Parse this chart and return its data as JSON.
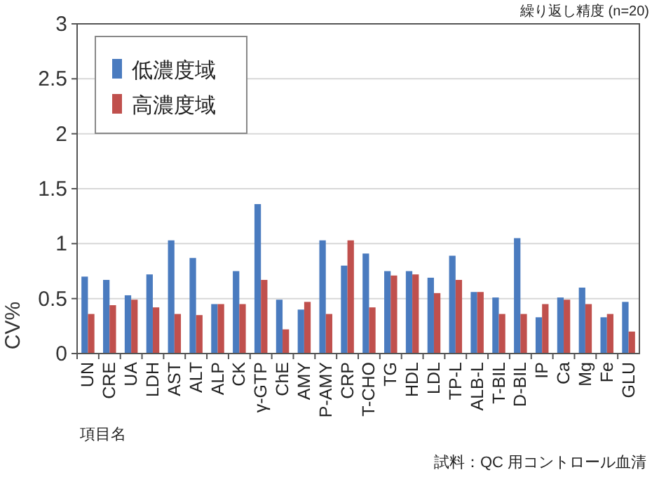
{
  "chart_data": {
    "type": "bar",
    "title": "繰り返し精度 (n=20)",
    "ylabel": "CV%",
    "xlabel": "項目名",
    "annotations": [
      "試料：QC 用コントロール血清"
    ],
    "categories": [
      "UN",
      "CRE",
      "UA",
      "LDH",
      "AST",
      "ALT",
      "ALP",
      "CK",
      "γ-GTP",
      "ChE",
      "AMY",
      "P-AMY",
      "CRP",
      "T-CHO",
      "TG",
      "HDL",
      "LDL",
      "TP-L",
      "ALB-L",
      "T-BIL",
      "D-BIL",
      "IP",
      "Ca",
      "Mg",
      "Fe",
      "GLU"
    ],
    "series": [
      {
        "name": "低濃度域",
        "color": "#4a7bbf",
        "values": [
          0.7,
          0.67,
          0.53,
          0.72,
          1.03,
          0.87,
          0.45,
          0.75,
          1.36,
          0.49,
          0.4,
          1.03,
          0.8,
          0.91,
          0.75,
          0.75,
          0.69,
          0.89,
          0.56,
          0.51,
          1.05,
          0.33,
          0.51,
          0.6,
          0.33,
          0.47
        ]
      },
      {
        "name": "高濃度域",
        "color": "#c0504d",
        "values": [
          0.36,
          0.44,
          0.49,
          0.42,
          0.36,
          0.35,
          0.45,
          0.45,
          0.67,
          0.22,
          0.47,
          0.36,
          1.03,
          0.42,
          0.71,
          0.72,
          0.55,
          0.67,
          0.56,
          0.36,
          0.36,
          0.45,
          0.49,
          0.45,
          0.36,
          0.2
        ]
      }
    ],
    "ylim": [
      0,
      3
    ],
    "yticks": [
      0,
      0.5,
      1,
      1.5,
      2,
      2.5,
      3
    ],
    "grid": "y",
    "legend": "top left"
  }
}
